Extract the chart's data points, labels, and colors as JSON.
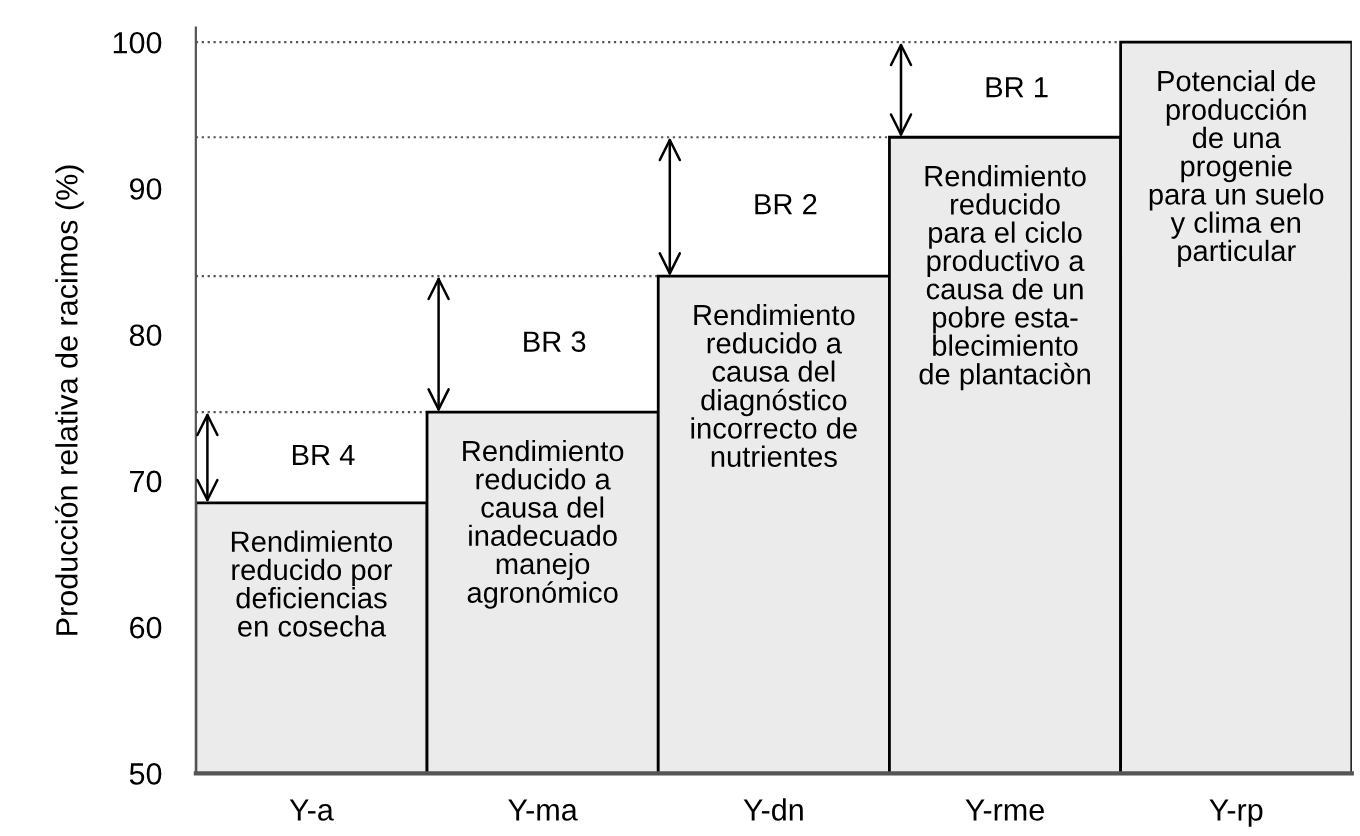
{
  "chart_data": {
    "type": "bar",
    "ylabel": "Producción relativa de racimos (%)",
    "categories": [
      "Y-a",
      "Y-ma",
      "Y-dn",
      "Y-rme",
      "Y-rp"
    ],
    "values": [
      68.5,
      74.7,
      84.0,
      93.5,
      100
    ],
    "color": "#ebebeb",
    "ylim": [
      50,
      101
    ],
    "yticks": [
      50,
      60,
      70,
      80,
      90,
      100
    ],
    "grid": false,
    "ref_lines": [
      {
        "axis": "y",
        "value": 74.7,
        "line_style": "dotted"
      },
      {
        "axis": "y",
        "value": 84.0,
        "line_style": "dotted"
      },
      {
        "axis": "y",
        "value": 93.5,
        "line_style": "dotted"
      },
      {
        "axis": "y",
        "value": 100,
        "line_style": "dotted"
      }
    ],
    "annotations": [
      "Rendimiento\nreducido por\ndeficiencias\nen cosecha",
      "Rendimiento\nreducido a\ncausa del\ninadecuado\nmanejo\nagronómico",
      "Rendimiento\nreducido a\ncausa del\ndiagnóstico\nincorrecto de\nnutrientes",
      "Rendimiento\nreducido\npara el ciclo\nproductivo a\ncausa de un\npobre esta-\nblecimiento\nde plantaciòn",
      "Potencial de\nproducción\nde una\nprogenie\npara un suelo\ny clima en\nparticular",
      "BR 4",
      "BR 3",
      "BR 2",
      "BR 1"
    ]
  }
}
